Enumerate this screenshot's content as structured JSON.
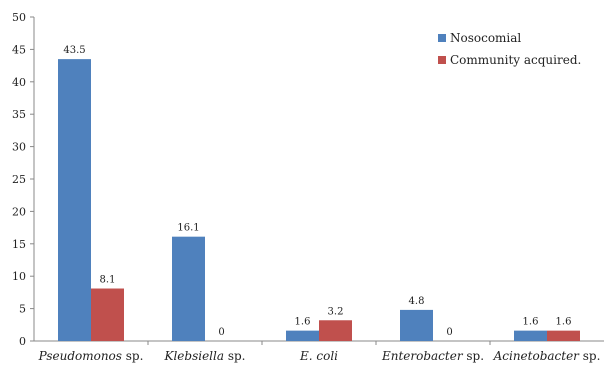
{
  "chart_data": {
    "type": "bar",
    "categories": [
      {
        "italic": "Pseudomonos",
        "suffix": " sp."
      },
      {
        "italic": "Klebsiella",
        "suffix": " sp."
      },
      {
        "italic": "E. coli",
        "suffix": ""
      },
      {
        "italic": "Enterobacter",
        "suffix": " sp."
      },
      {
        "italic": "Acinetobacter",
        "suffix": " sp."
      }
    ],
    "series": [
      {
        "name": "Nosocomial",
        "color": "#4f81bd",
        "values": [
          43.5,
          16.1,
          1.6,
          4.8,
          1.6
        ]
      },
      {
        "name": "Community acquired.",
        "color": "#c0504d",
        "values": [
          8.1,
          0,
          3.2,
          0,
          1.6
        ]
      }
    ],
    "ylim": [
      0,
      50
    ],
    "yticks": [
      0,
      5,
      10,
      15,
      20,
      25,
      30,
      35,
      40,
      45,
      50
    ],
    "grid": false,
    "legend": "top-right"
  }
}
